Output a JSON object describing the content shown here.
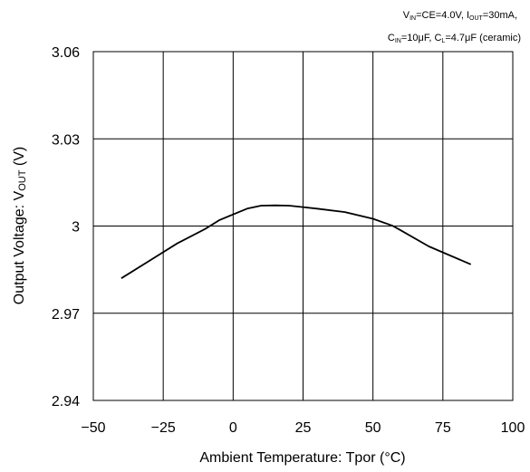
{
  "chart_data": {
    "type": "line",
    "title": "",
    "conditions": {
      "line1": {
        "v": "V",
        "v_sub": "IN",
        "ce": "=CE=4.0V, ",
        "i": "I",
        "i_sub": "OUT",
        "i_val": "=30mA,"
      },
      "line2": {
        "c_in": "C",
        "c_in_sub": "IN",
        "c_in_val": "=10μF, ",
        "c_l": "C",
        "c_l_sub": "L",
        "c_l_val": "=4.7μF (ceramic)"
      }
    },
    "xlabel": "Ambient Temperature: Tpor (°C)",
    "ylabel": {
      "prefix": "Output Voltage: V",
      "sub": "OUT",
      "suffix": " (V)"
    },
    "xlim": [
      -50,
      100
    ],
    "ylim": [
      2.94,
      3.06
    ],
    "x_ticks": [
      -50,
      -25,
      0,
      25,
      50,
      75,
      100
    ],
    "x_tick_labels": [
      "−50",
      "−25",
      "0",
      "25",
      "50",
      "75",
      "100"
    ],
    "y_ticks": [
      2.94,
      2.97,
      3,
      3.03,
      3.06
    ],
    "y_tick_labels": [
      "2.94",
      "2.97",
      "3",
      "3.03",
      "3.06"
    ],
    "grid": true,
    "series": [
      {
        "x": [
          -40,
          -30,
          -20,
          -10,
          -5,
          0,
          5,
          10,
          15,
          20,
          25,
          30,
          40,
          50,
          57,
          60,
          70,
          85
        ],
        "y": [
          2.982,
          2.988,
          2.994,
          2.999,
          3.002,
          3.004,
          3.006,
          3.007,
          3.0071,
          3.007,
          3.0065,
          3.006,
          3.0048,
          3.0025,
          3.0001,
          2.9985,
          2.993,
          2.9868
        ]
      }
    ]
  }
}
